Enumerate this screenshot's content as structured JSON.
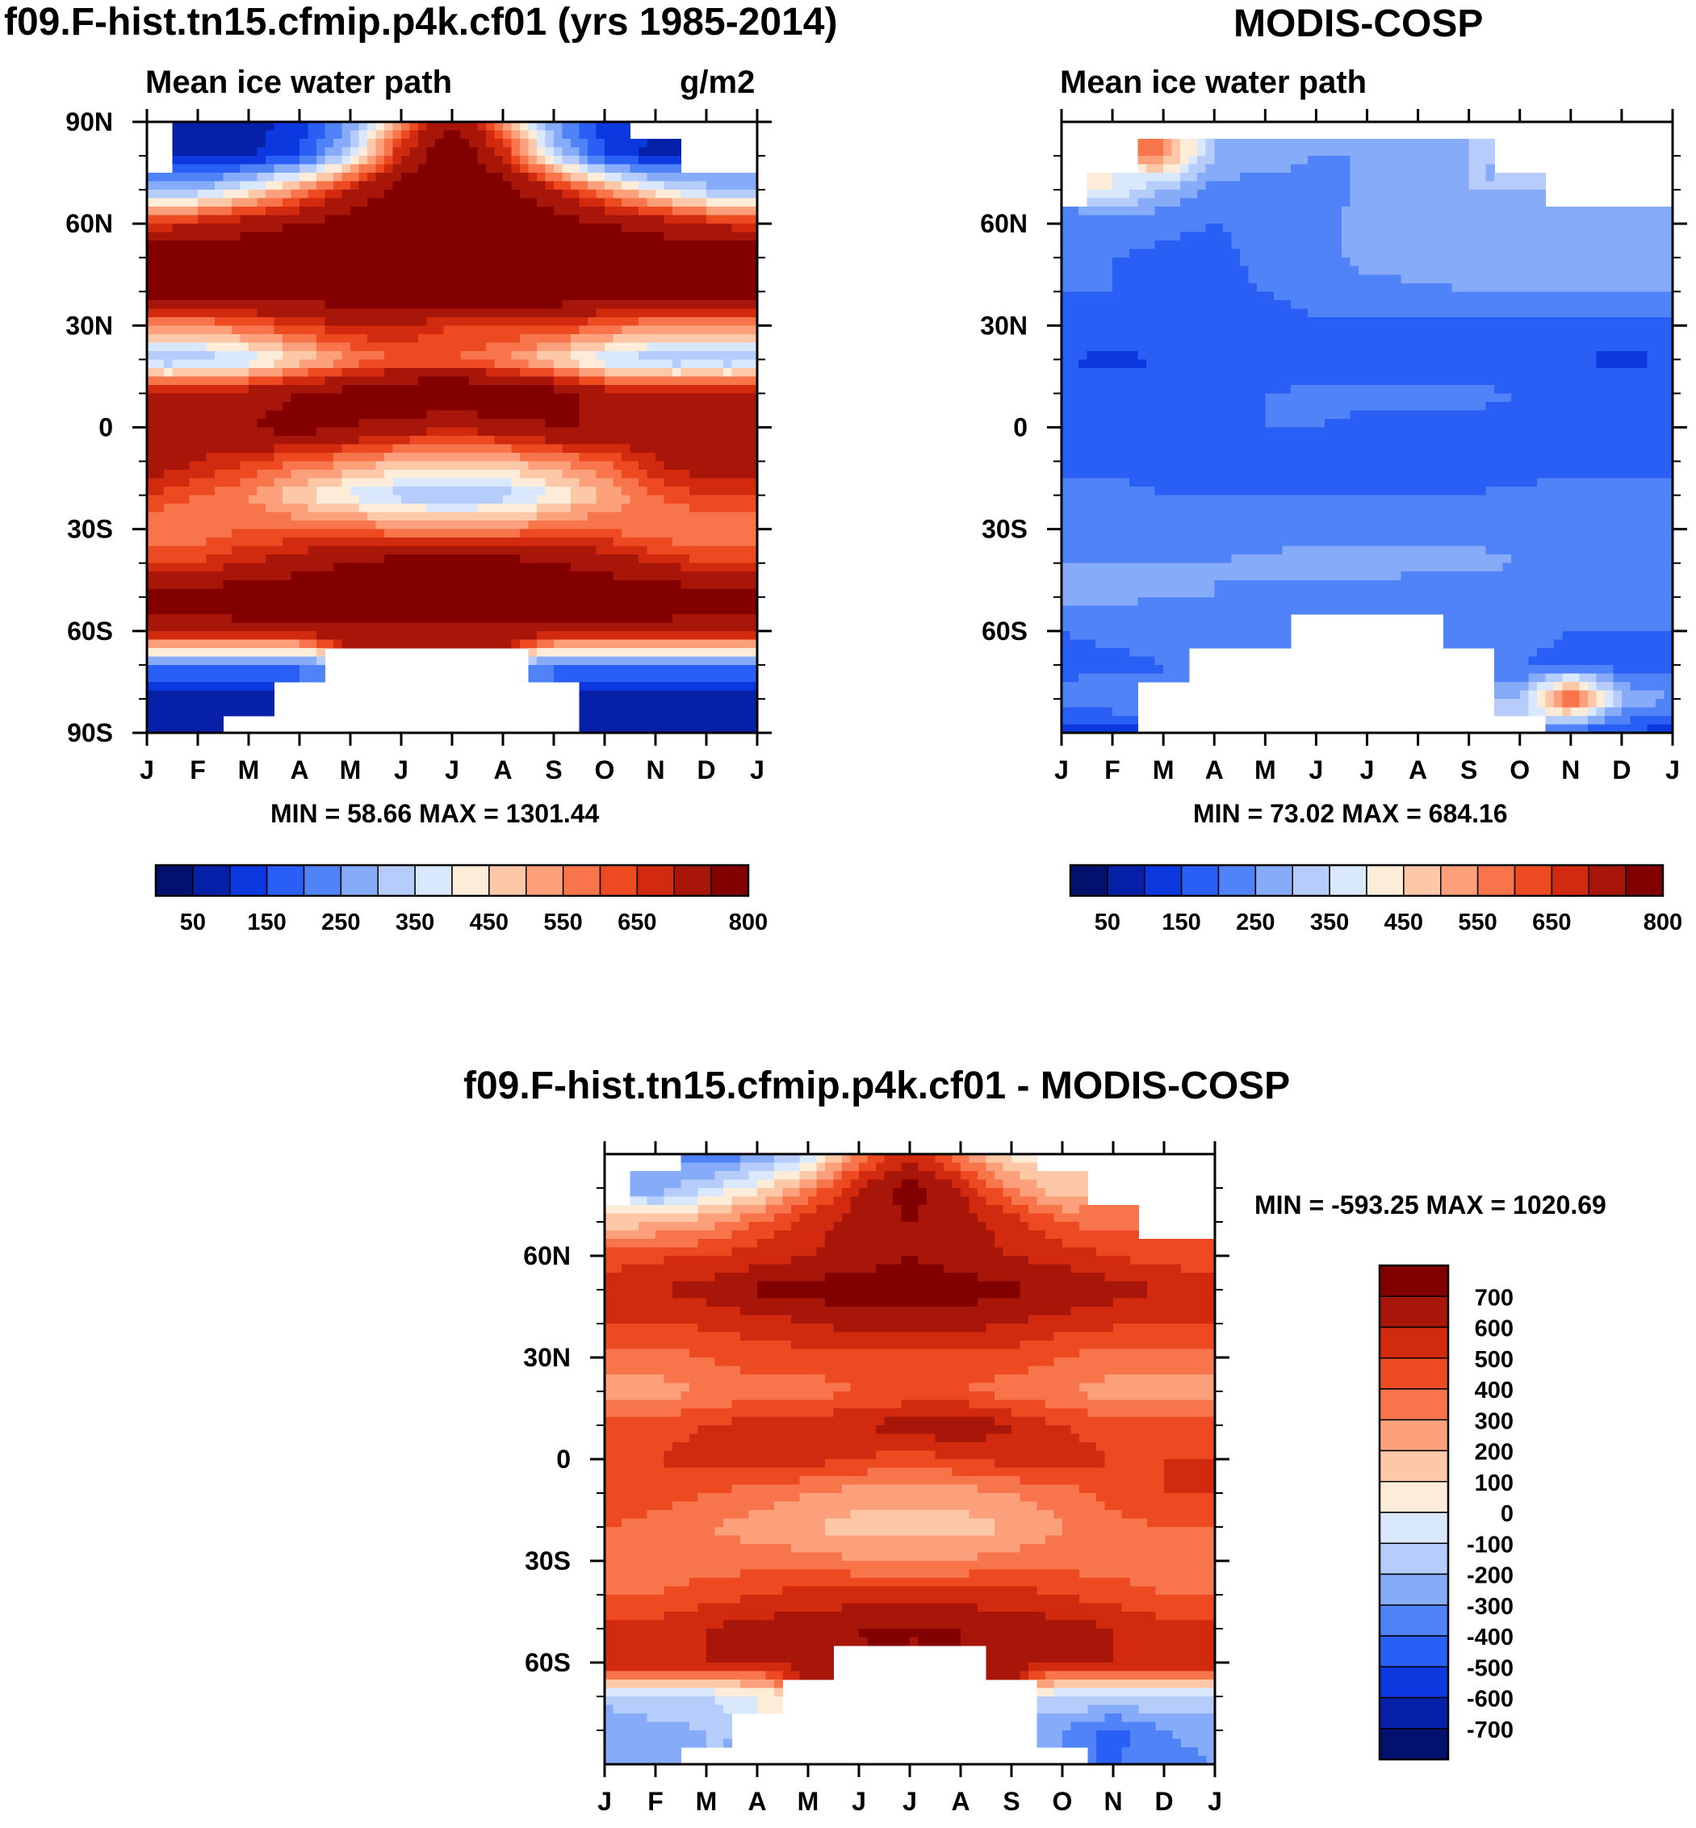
{
  "title_model": "f09.F-hist.tn15.cfmip.p4k.cf01 (yrs 1985-2014)",
  "title_obs": "MODIS-COSP",
  "title_diff": "f09.F-hist.tn15.cfmip.p4k.cf01 - MODIS-COSP",
  "chart_data": [
    {
      "type": "heatmap",
      "name": "model",
      "title": "f09.F-hist.tn15.cfmip.p4k.cf01 (yrs 1985-2014)",
      "left_label": "Mean ice water path",
      "units": "g/m2",
      "stats": "MIN =  58.66 MAX = 1301.44",
      "x_ticks": [
        "J",
        "F",
        "M",
        "A",
        "M",
        "J",
        "J",
        "A",
        "S",
        "O",
        "N",
        "D",
        "J"
      ],
      "y_ticks": [
        "90N",
        "60N",
        "30N",
        "0",
        "30S",
        "60S",
        "90S"
      ],
      "ylim": [
        -90,
        90
      ],
      "colorbar_labels": [
        "50",
        "150",
        "250",
        "350",
        "450",
        "550",
        "650",
        "800"
      ],
      "levels": [
        50,
        100,
        150,
        200,
        250,
        300,
        350,
        400,
        450,
        500,
        550,
        600,
        650,
        700,
        800
      ],
      "lat_values": [
        90,
        80,
        70,
        60,
        50,
        40,
        30,
        20,
        10,
        0,
        -10,
        -20,
        -30,
        -40,
        -50,
        -60,
        -70,
        -80,
        -90
      ],
      "field": [
        [
          null,
          60,
          80,
          120,
          250,
          550,
          800,
          550,
          250,
          120,
          null,
          null,
          null
        ],
        [
          null,
          70,
          90,
          150,
          350,
          700,
          900,
          700,
          350,
          150,
          80,
          null,
          null
        ],
        [
          250,
          300,
          400,
          550,
          700,
          850,
          950,
          850,
          700,
          550,
          400,
          300,
          250
        ],
        [
          650,
          700,
          750,
          800,
          850,
          900,
          950,
          900,
          850,
          800,
          750,
          700,
          650
        ],
        [
          900,
          900,
          900,
          950,
          950,
          950,
          950,
          950,
          950,
          900,
          900,
          900,
          900
        ],
        [
          850,
          850,
          850,
          850,
          900,
          900,
          900,
          900,
          900,
          850,
          850,
          850,
          850
        ],
        [
          550,
          550,
          600,
          650,
          700,
          700,
          650,
          650,
          650,
          600,
          550,
          550,
          550
        ],
        [
          300,
          300,
          350,
          450,
          550,
          600,
          600,
          550,
          450,
          350,
          300,
          300,
          300
        ],
        [
          700,
          700,
          750,
          800,
          850,
          900,
          950,
          900,
          850,
          750,
          700,
          700,
          700
        ],
        [
          750,
          750,
          800,
          850,
          800,
          750,
          700,
          750,
          800,
          800,
          750,
          750,
          750
        ],
        [
          750,
          700,
          650,
          600,
          550,
          500,
          500,
          500,
          550,
          600,
          700,
          750,
          750
        ],
        [
          650,
          600,
          550,
          450,
          380,
          320,
          300,
          320,
          400,
          500,
          600,
          650,
          650
        ],
        [
          550,
          550,
          600,
          600,
          600,
          550,
          550,
          550,
          600,
          600,
          550,
          550,
          550
        ],
        [
          650,
          650,
          700,
          750,
          800,
          850,
          850,
          850,
          800,
          750,
          700,
          650,
          650
        ],
        [
          850,
          850,
          900,
          900,
          900,
          900,
          900,
          900,
          900,
          900,
          900,
          850,
          850
        ],
        [
          750,
          750,
          750,
          750,
          750,
          750,
          750,
          750,
          750,
          750,
          750,
          750,
          750
        ],
        [
          200,
          200,
          200,
          200,
          null,
          null,
          null,
          null,
          200,
          200,
          200,
          200,
          200
        ],
        [
          70,
          70,
          70,
          null,
          null,
          null,
          null,
          null,
          null,
          70,
          70,
          70,
          70
        ],
        [
          60,
          60,
          null,
          null,
          null,
          null,
          null,
          null,
          null,
          60,
          60,
          60,
          60
        ]
      ]
    },
    {
      "type": "heatmap",
      "name": "obs",
      "title": "MODIS-COSP",
      "left_label": "Mean ice water path",
      "units": "",
      "stats": "MIN =  73.02 MAX = 684.16",
      "x_ticks": [
        "J",
        "F",
        "M",
        "A",
        "M",
        "J",
        "J",
        "A",
        "S",
        "O",
        "N",
        "D",
        "J"
      ],
      "y_ticks": [
        "60N",
        "30N",
        "0",
        "30S",
        "60S"
      ],
      "ylim": [
        -90,
        90
      ],
      "colorbar_labels": [
        "50",
        "150",
        "250",
        "350",
        "450",
        "550",
        "650",
        "800"
      ],
      "levels": [
        50,
        100,
        150,
        200,
        250,
        300,
        350,
        400,
        450,
        500,
        550,
        600,
        650,
        700,
        800
      ],
      "lat_values": [
        90,
        80,
        70,
        60,
        50,
        40,
        30,
        20,
        10,
        0,
        -10,
        -20,
        -30,
        -40,
        -50,
        -60,
        -70,
        -80,
        -90
      ],
      "field": [
        [
          null,
          null,
          null,
          null,
          null,
          null,
          null,
          null,
          null,
          null,
          null,
          null,
          null
        ],
        [
          null,
          null,
          550,
          300,
          280,
          250,
          250,
          250,
          300,
          null,
          null,
          null,
          null
        ],
        [
          null,
          400,
          300,
          230,
          220,
          230,
          260,
          270,
          300,
          300,
          null,
          null,
          null
        ],
        [
          220,
          220,
          210,
          200,
          210,
          240,
          260,
          280,
          290,
          290,
          290,
          290,
          290
        ],
        [
          210,
          200,
          190,
          190,
          210,
          240,
          260,
          270,
          270,
          270,
          270,
          270,
          270
        ],
        [
          200,
          200,
          190,
          190,
          200,
          220,
          240,
          240,
          250,
          250,
          250,
          250,
          250
        ],
        [
          190,
          180,
          180,
          180,
          180,
          190,
          190,
          190,
          190,
          190,
          190,
          190,
          190
        ],
        [
          150,
          140,
          150,
          160,
          170,
          170,
          170,
          170,
          170,
          160,
          150,
          140,
          150
        ],
        [
          180,
          170,
          180,
          190,
          200,
          210,
          210,
          210,
          210,
          200,
          190,
          180,
          180
        ],
        [
          190,
          190,
          190,
          190,
          200,
          200,
          190,
          190,
          190,
          190,
          190,
          190,
          190
        ],
        [
          190,
          190,
          180,
          180,
          170,
          160,
          160,
          160,
          170,
          180,
          190,
          190,
          190
        ],
        [
          210,
          210,
          200,
          200,
          200,
          200,
          200,
          200,
          200,
          210,
          210,
          210,
          210
        ],
        [
          230,
          230,
          230,
          230,
          230,
          240,
          240,
          240,
          240,
          240,
          240,
          240,
          240
        ],
        [
          250,
          250,
          250,
          250,
          260,
          260,
          260,
          260,
          260,
          250,
          250,
          250,
          250
        ],
        [
          260,
          260,
          250,
          250,
          240,
          240,
          240,
          230,
          230,
          230,
          230,
          240,
          250
        ],
        [
          200,
          210,
          210,
          200,
          210,
          null,
          null,
          null,
          220,
          210,
          200,
          200,
          200
        ],
        [
          180,
          190,
          200,
          null,
          null,
          null,
          null,
          null,
          null,
          200,
          190,
          180,
          180
        ],
        [
          220,
          250,
          null,
          null,
          null,
          null,
          null,
          null,
          null,
          300,
          650,
          300,
          250
        ],
        [
          120,
          120,
          null,
          null,
          null,
          null,
          null,
          null,
          null,
          null,
          150,
          150,
          120
        ]
      ]
    },
    {
      "type": "heatmap",
      "name": "difference",
      "title": "f09.F-hist.tn15.cfmip.p4k.cf01 - MODIS-COSP",
      "left_label": "",
      "units": "",
      "stats": "MIN = -593.25 MAX = 1020.69",
      "x_ticks": [
        "J",
        "F",
        "M",
        "A",
        "M",
        "J",
        "J",
        "A",
        "S",
        "O",
        "N",
        "D",
        "J"
      ],
      "y_ticks": [
        "60N",
        "30N",
        "0",
        "30S",
        "60S"
      ],
      "ylim": [
        -90,
        90
      ],
      "colorbar_labels": [
        "700",
        "600",
        "500",
        "400",
        "300",
        "200",
        "100",
        "0",
        "-100",
        "-200",
        "-300",
        "-400",
        "-500",
        "-600",
        "-700"
      ],
      "levels": [
        -700,
        -600,
        -500,
        -400,
        -300,
        -200,
        -100,
        0,
        100,
        200,
        300,
        400,
        500,
        600,
        700
      ],
      "lat_values": [
        90,
        80,
        70,
        60,
        50,
        40,
        30,
        20,
        10,
        0,
        -10,
        -20,
        -30,
        -40,
        -50,
        -60,
        -70,
        -80,
        -90
      ],
      "field": [
        [
          null,
          null,
          -400,
          -300,
          -100,
          300,
          600,
          300,
          50,
          null,
          null,
          null,
          null
        ],
        [
          null,
          -300,
          -100,
          50,
          300,
          600,
          750,
          600,
          300,
          100,
          null,
          null,
          null
        ],
        [
          100,
          200,
          250,
          400,
          550,
          650,
          700,
          650,
          550,
          400,
          350,
          null,
          null
        ],
        [
          450,
          480,
          500,
          550,
          600,
          650,
          700,
          650,
          600,
          550,
          500,
          450,
          450
        ],
        [
          550,
          600,
          650,
          720,
          750,
          750,
          750,
          750,
          720,
          700,
          650,
          600,
          550
        ],
        [
          500,
          500,
          520,
          550,
          600,
          650,
          650,
          650,
          600,
          550,
          520,
          500,
          500
        ],
        [
          350,
          350,
          400,
          450,
          450,
          450,
          450,
          450,
          450,
          400,
          350,
          350,
          350
        ],
        [
          250,
          250,
          300,
          350,
          350,
          400,
          420,
          400,
          350,
          300,
          250,
          250,
          250
        ],
        [
          450,
          450,
          500,
          550,
          550,
          600,
          650,
          700,
          600,
          500,
          450,
          450,
          450
        ],
        [
          500,
          500,
          550,
          550,
          550,
          500,
          450,
          500,
          550,
          550,
          500,
          500,
          500
        ],
        [
          500,
          450,
          400,
          350,
          300,
          250,
          250,
          250,
          300,
          350,
          450,
          500,
          500
        ],
        [
          400,
          350,
          300,
          250,
          200,
          150,
          150,
          150,
          200,
          300,
          350,
          400,
          400
        ],
        [
          350,
          350,
          350,
          350,
          350,
          300,
          300,
          300,
          350,
          350,
          350,
          350,
          350
        ],
        [
          400,
          400,
          450,
          500,
          550,
          550,
          550,
          550,
          550,
          500,
          450,
          400,
          400
        ],
        [
          550,
          550,
          600,
          650,
          650,
          700,
          700,
          700,
          650,
          650,
          600,
          550,
          550
        ],
        [
          600,
          600,
          600,
          600,
          650,
          null,
          null,
          null,
          650,
          600,
          600,
          600,
          600
        ],
        [
          -150,
          -100,
          -100,
          0,
          null,
          null,
          null,
          null,
          null,
          -100,
          -100,
          -100,
          -150
        ],
        [
          -300,
          -250,
          -200,
          null,
          null,
          null,
          null,
          null,
          null,
          -300,
          -450,
          -300,
          -250
        ],
        [
          -300,
          -200,
          null,
          null,
          null,
          null,
          null,
          null,
          null,
          null,
          -400,
          -350,
          -300
        ]
      ]
    }
  ],
  "colors": {
    "sequential": [
      "#02106e",
      "#0720a8",
      "#0c38e0",
      "#2a5ff5",
      "#4f83f7",
      "#86acf9",
      "#b6cdfb",
      "#d9e8fd",
      "#fdecd8",
      "#fcc8a8",
      "#fba07a",
      "#f8744a",
      "#ee4a22",
      "#d22a0f",
      "#a8160a",
      "#820000"
    ],
    "diverging": [
      "#02106e",
      "#0720a8",
      "#0c38e0",
      "#2a5ff5",
      "#4f83f7",
      "#86acf9",
      "#b6cdfb",
      "#d9e8fd",
      "#fdecd8",
      "#fcc8a8",
      "#fba07a",
      "#f8744a",
      "#ee4a22",
      "#d22a0f",
      "#a8160a",
      "#820000"
    ]
  }
}
